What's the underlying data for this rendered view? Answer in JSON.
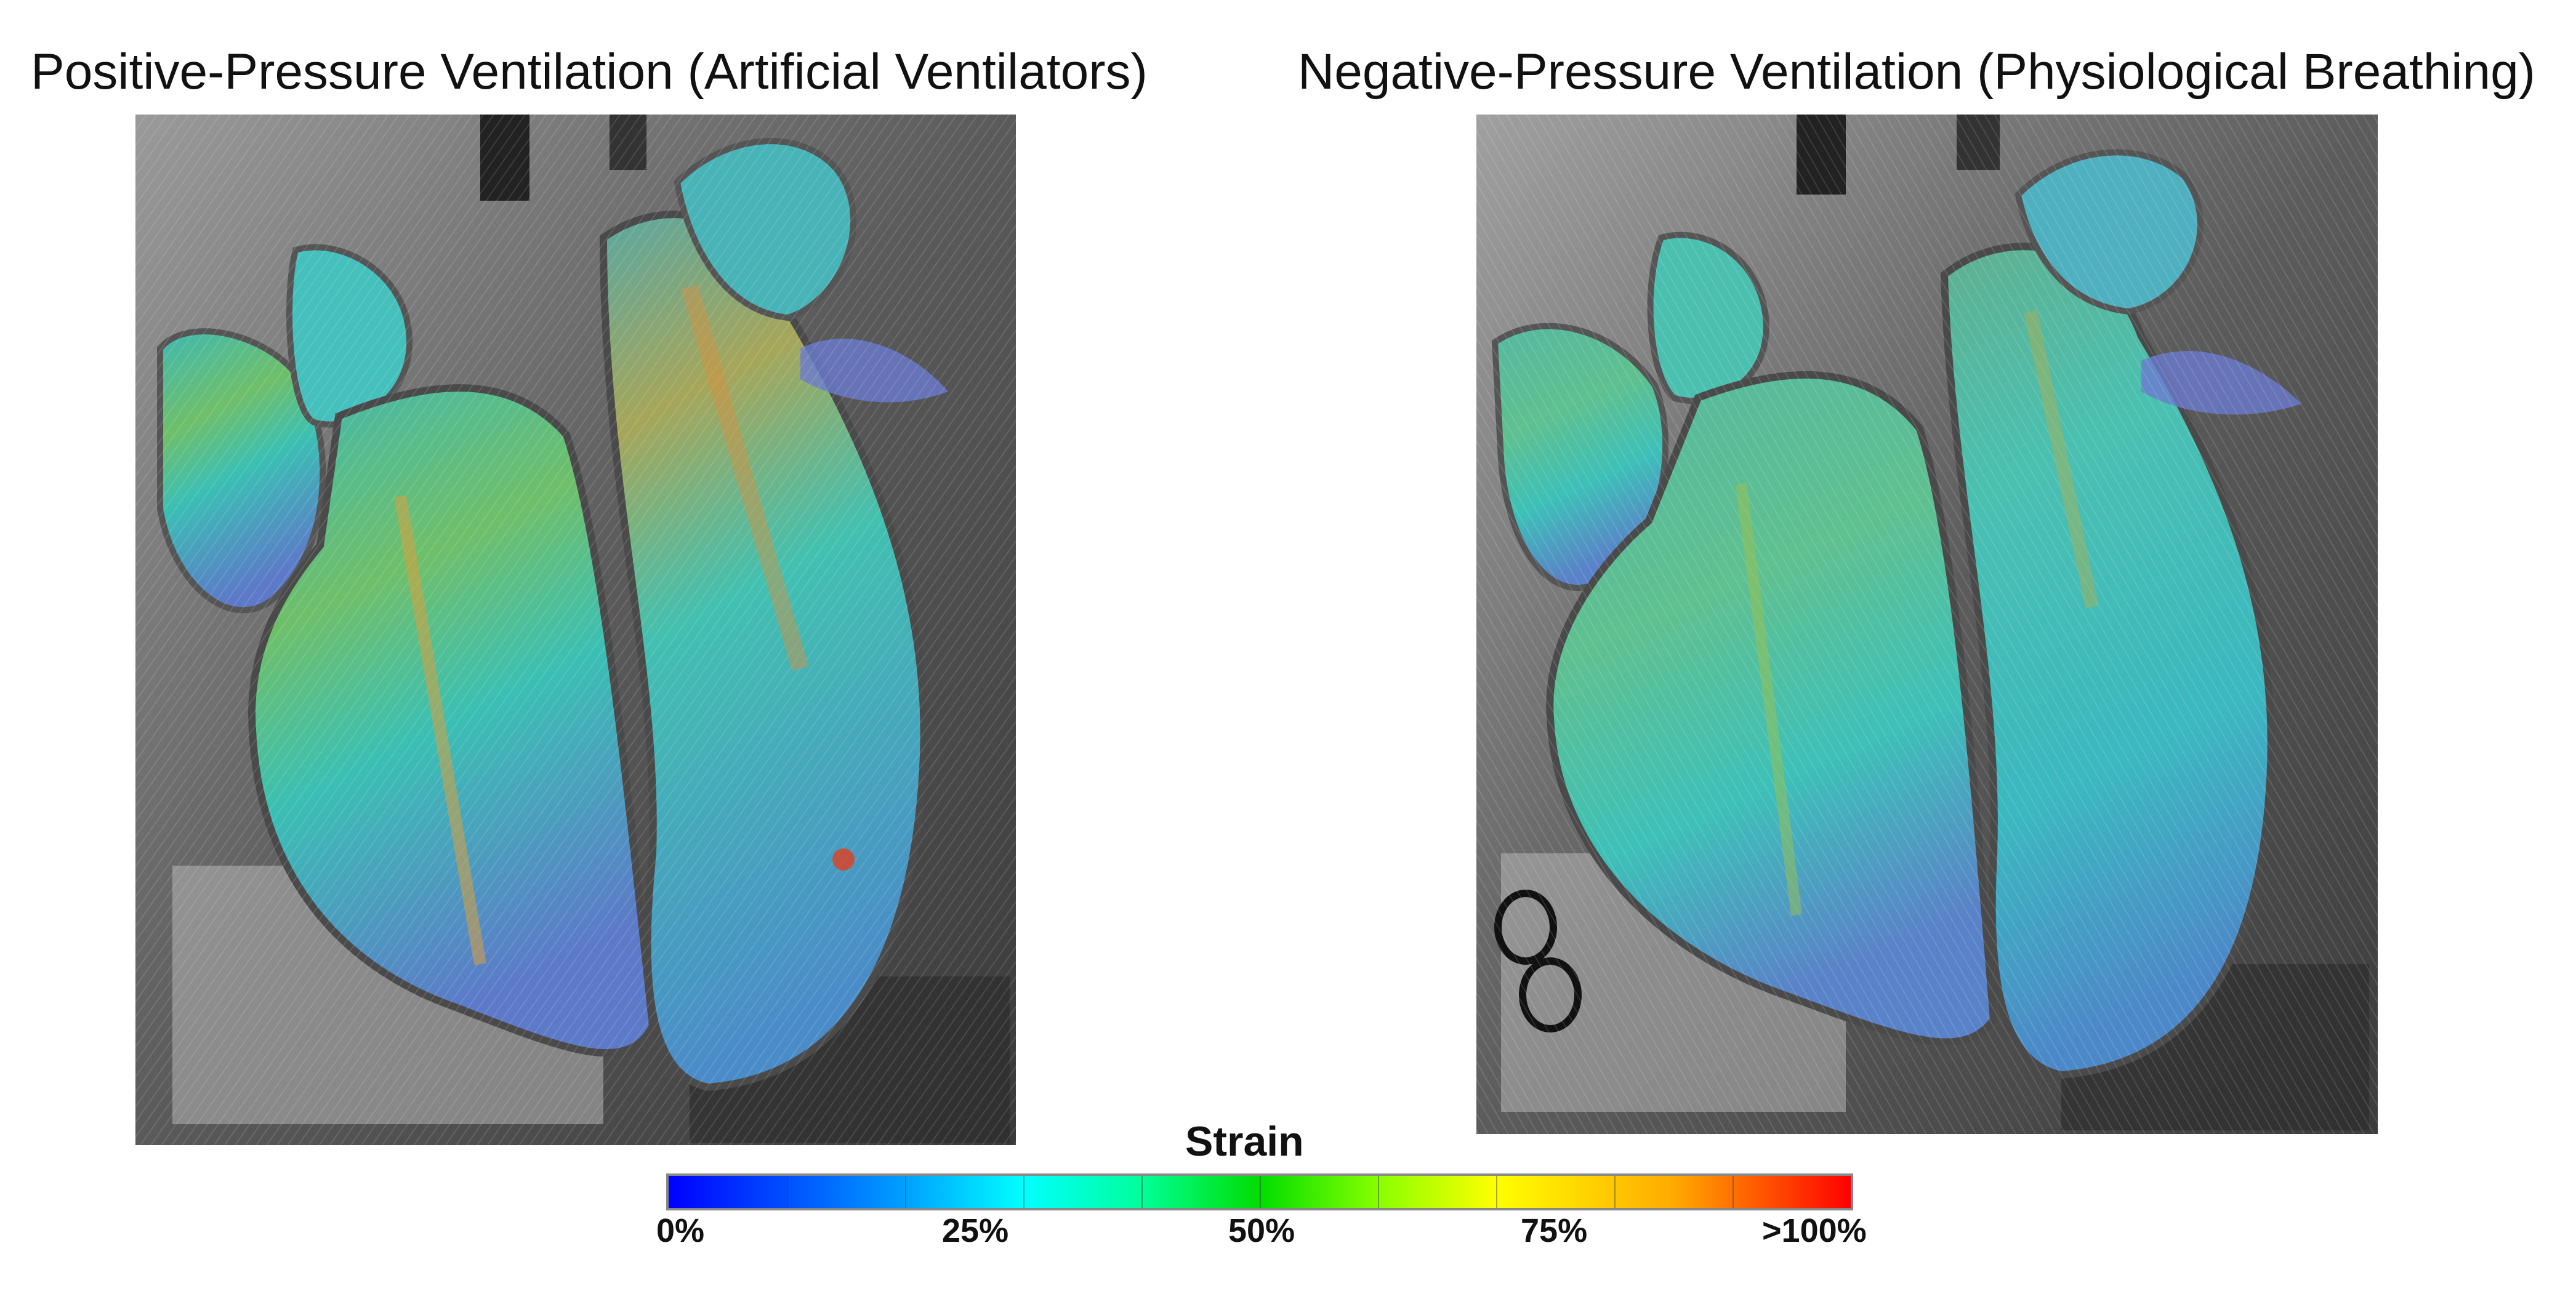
{
  "panels": {
    "left": {
      "title": "Positive-Pressure Ventilation (Artificial Ventilators)",
      "image_description_name": "lung-strain-map-positive-pressure"
    },
    "right": {
      "title": "Negative-Pressure Ventilation (Physiological Breathing)",
      "image_description_name": "lung-strain-map-negative-pressure"
    }
  },
  "colorbar": {
    "title": "Strain",
    "labels": [
      "0%",
      "25%",
      "50%",
      "75%",
      ">100%"
    ],
    "colors": {
      "low": "#0000ff",
      "mid_low": "#00ffff",
      "mid": "#00dd00",
      "mid_high": "#ffff00",
      "high": "#ff0000"
    }
  }
}
